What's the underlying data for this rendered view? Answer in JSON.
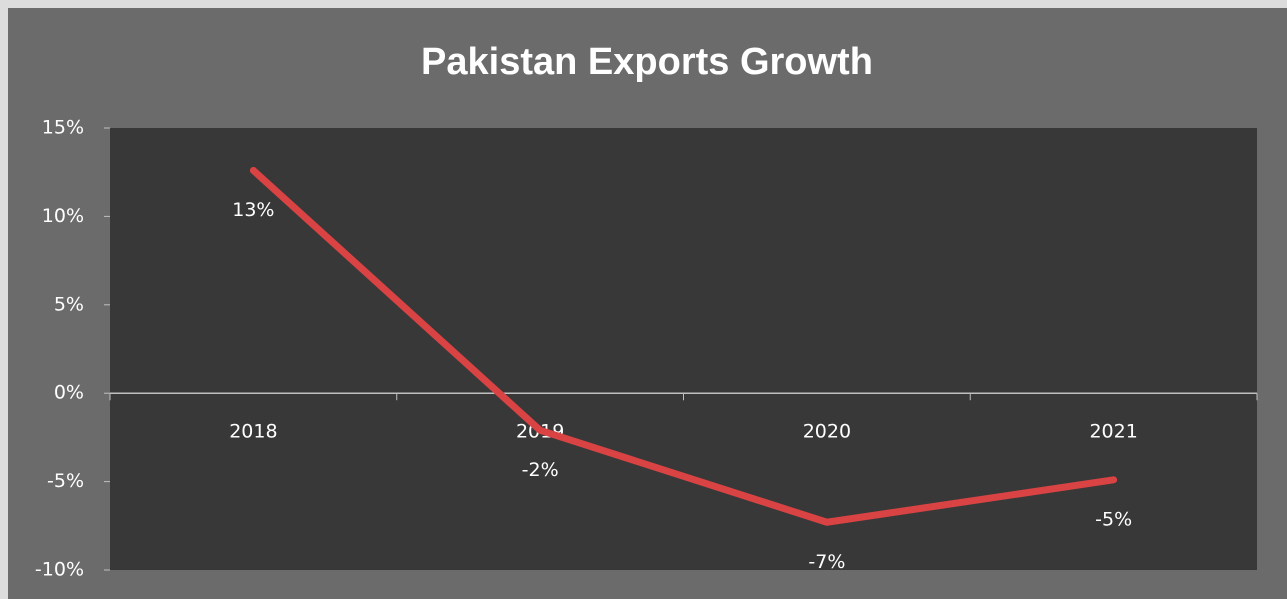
{
  "chart_data": {
    "type": "line",
    "title": "Pakistan Exports Growth",
    "categories": [
      "2018",
      "2019",
      "2020",
      "2021"
    ],
    "series": [
      {
        "name": "Exports Growth",
        "color": "#d94343",
        "values": [
          12.6,
          -2.1,
          -7.3,
          -4.9
        ],
        "value_labels": [
          "13%",
          "-2%",
          "-7%",
          "-5%"
        ]
      }
    ],
    "ylim": [
      -10,
      15
    ],
    "yticks": [
      {
        "value": -10,
        "label": "-10%"
      },
      {
        "value": -5,
        "label": "-5%"
      },
      {
        "value": 0,
        "label": "0%"
      },
      {
        "value": 5,
        "label": "5%"
      },
      {
        "value": 10,
        "label": "10%"
      },
      {
        "value": 15,
        "label": "15%"
      }
    ],
    "grid": false
  }
}
